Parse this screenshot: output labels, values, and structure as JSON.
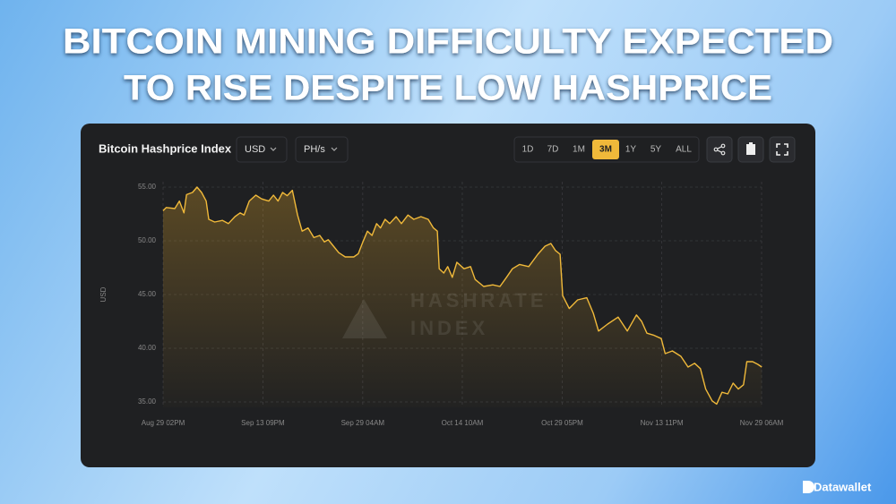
{
  "headline": [
    "BITCOIN MINING DIFFICULTY EXPECTED",
    "TO RISE DESPITE LOW HASHPRICE"
  ],
  "card": {
    "title": "Bitcoin Hashprice Index",
    "currency": "USD",
    "unit": "PH/s",
    "ranges": [
      "1D",
      "7D",
      "1M",
      "3M",
      "1Y",
      "5Y",
      "ALL"
    ],
    "active_range": 3
  },
  "watermark": [
    "HASHRATE",
    "INDEX"
  ],
  "brand": "Datawallet",
  "chart_data": {
    "type": "line",
    "y_label": "USD",
    "color": "#f0b93a",
    "area": true,
    "grid": true,
    "x": [
      0,
      0.5,
      1.8,
      2.5,
      3.2,
      3.6,
      4.5,
      5.2,
      5.9,
      6.6,
      7.0,
      7.9,
      9.1,
      10.0,
      11.0,
      11.8,
      12.4,
      13.2,
      14.2,
      15.1,
      16.2,
      16.9,
      17.6,
      18.3,
      19.0,
      19.8,
      20.6,
      21.3,
      22.2,
      23.1,
      24.0,
      24.7,
      25.3,
      26.1,
      26.9,
      27.9,
      29.2,
      29.9,
      30.6,
      31.3,
      32.0,
      32.7,
      33.3,
      34.0,
      34.7,
      35.7,
      36.5,
      37.5,
      38.4,
      39.5,
      40.6,
      41.4,
      42.0,
      42.3,
      43.0,
      43.6,
      44.3,
      45.0,
      46.1,
      47.1,
      47.8,
      49.1,
      50.5,
      51.6,
      52.6,
      53.5,
      54.6,
      56.0,
      57.4,
      58.5,
      59.4,
      60.1,
      60.8,
      61.2,
      62.2,
      63.5,
      64.9,
      65.9,
      66.7,
      68.1,
      69.7,
      71.1,
      72.5,
      73.3,
      74.1,
      75.2,
      76.3,
      76.9,
      78.0,
      79.3,
      80.4,
      81.4,
      82.3,
      83.1,
      84.1,
      84.8,
      85.6,
      86.5,
      87.3,
      88.1,
      88.9,
      89.4,
      90.3,
      91.1,
      91.7
    ],
    "values": [
      52.8,
      53.1,
      53.0,
      53.7,
      52.6,
      54.3,
      54.5,
      55.0,
      54.5,
      53.7,
      52.0,
      51.75,
      51.9,
      51.6,
      52.25,
      52.6,
      52.4,
      53.7,
      54.25,
      53.9,
      53.7,
      54.25,
      53.7,
      54.5,
      54.2,
      54.7,
      52.4,
      50.9,
      51.2,
      50.3,
      50.5,
      49.9,
      50.1,
      49.5,
      48.9,
      48.5,
      48.5,
      48.8,
      49.9,
      50.9,
      50.5,
      51.6,
      51.2,
      52.0,
      51.6,
      52.25,
      51.6,
      52.4,
      52.0,
      52.25,
      52.0,
      51.2,
      50.9,
      47.4,
      47.0,
      47.6,
      46.6,
      48.0,
      47.4,
      47.6,
      46.4,
      45.75,
      45.9,
      45.75,
      46.6,
      47.4,
      47.8,
      47.6,
      48.75,
      49.5,
      49.75,
      49.1,
      48.75,
      44.9,
      43.7,
      44.5,
      44.7,
      43.25,
      41.6,
      42.25,
      42.9,
      41.6,
      43.1,
      42.5,
      41.4,
      41.2,
      40.9,
      39.5,
      39.75,
      39.25,
      38.25,
      38.6,
      38.1,
      36.2,
      35.1,
      34.8,
      35.9,
      35.75,
      36.75,
      36.2,
      36.6,
      38.75,
      38.75,
      38.5,
      38.25
    ],
    "xlim": [
      0,
      91.67
    ],
    "xticks": [
      {
        "value": 0,
        "label": "Aug 29 02PM"
      },
      {
        "value": 15.29,
        "label": "Sep 13 09PM"
      },
      {
        "value": 30.58,
        "label": "Sep 29 04AM"
      },
      {
        "value": 45.83,
        "label": "Oct 14 10AM"
      },
      {
        "value": 61.13,
        "label": "Oct 29 05PM"
      },
      {
        "value": 76.38,
        "label": "Nov 13 11PM"
      },
      {
        "value": 91.67,
        "label": "Nov 29 06AM"
      }
    ],
    "ylim": [
      34.5,
      55.5
    ],
    "yticks": [
      {
        "value": 35,
        "label": "35.00"
      },
      {
        "value": 40,
        "label": "40.00"
      },
      {
        "value": 45,
        "label": "45.00"
      },
      {
        "value": 50,
        "label": "50.00"
      },
      {
        "value": 55,
        "label": "55.00"
      }
    ]
  }
}
